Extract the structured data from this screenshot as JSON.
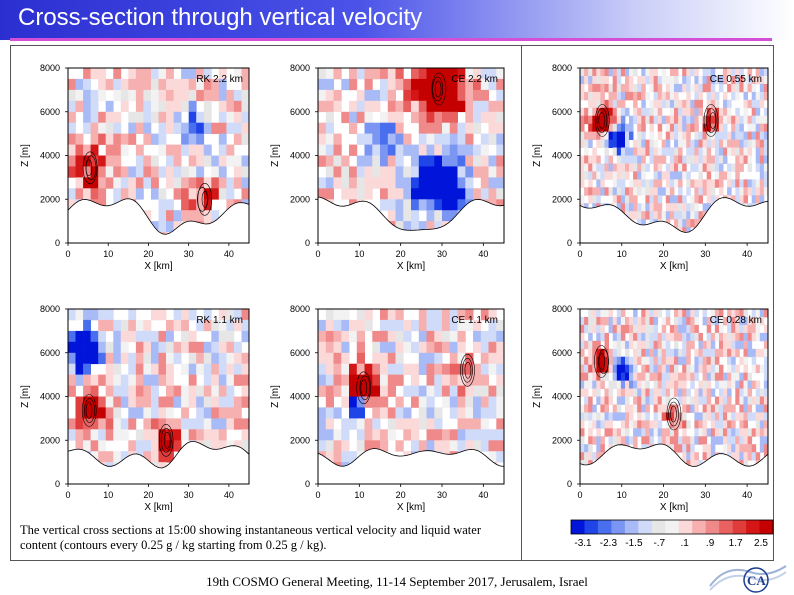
{
  "title": "Cross-section through vertical velocity",
  "caption": "The vertical cross sections at 15:00 showing instantaneous vertical velocity and liquid water content (contours every 0.25 g / kg starting from 0.25 g / kg).",
  "footer": "19th COSMO General Meeting, 11-14 September 2017, Jerusalem, Israel",
  "logo_text": "CA",
  "chart_data": [
    {
      "type": "heatmap",
      "title": "RK 2.2 km",
      "xlabel": "X [km]",
      "ylabel": "Z [m]",
      "xlim": [
        0,
        45
      ],
      "ylim": [
        0,
        8000
      ],
      "xticks": [
        "0",
        "10",
        "20",
        "30",
        "40"
      ],
      "yticks": [
        "0",
        "2000",
        "4000",
        "6000",
        "8000"
      ]
    },
    {
      "type": "heatmap",
      "title": "CE 2.2 km",
      "xlabel": "X [km]",
      "ylabel": "Z [m]",
      "xlim": [
        0,
        45
      ],
      "ylim": [
        0,
        8000
      ],
      "xticks": [
        "0",
        "10",
        "20",
        "30",
        "40"
      ],
      "yticks": [
        "0",
        "2000",
        "4000",
        "6000",
        "8000"
      ]
    },
    {
      "type": "heatmap",
      "title": "CE 0.55 km",
      "xlabel": "X [km]",
      "ylabel": "Z [m]",
      "xlim": [
        0,
        45
      ],
      "ylim": [
        0,
        8000
      ],
      "xticks": [
        "0",
        "10",
        "20",
        "30",
        "40"
      ],
      "yticks": [
        "0",
        "2000",
        "4000",
        "6000",
        "8000"
      ]
    },
    {
      "type": "heatmap",
      "title": "RK 1.1 km",
      "xlabel": "X [km]",
      "ylabel": "Z [m]",
      "xlim": [
        0,
        45
      ],
      "ylim": [
        0,
        8000
      ],
      "xticks": [
        "0",
        "10",
        "20",
        "30",
        "40"
      ],
      "yticks": [
        "0",
        "2000",
        "4000",
        "6000",
        "8000"
      ]
    },
    {
      "type": "heatmap",
      "title": "CE 1.1 km",
      "xlabel": "X [km]",
      "ylabel": "Z [m]",
      "xlim": [
        0,
        45
      ],
      "ylim": [
        0,
        8000
      ],
      "xticks": [
        "0",
        "10",
        "20",
        "30",
        "40"
      ],
      "yticks": [
        "0",
        "2000",
        "4000",
        "6000",
        "8000"
      ]
    },
    {
      "type": "heatmap",
      "title": "CE 0.28 km",
      "xlabel": "X [km]",
      "ylabel": "Z [m]",
      "xlim": [
        0,
        45
      ],
      "ylim": [
        0,
        8000
      ],
      "xticks": [
        "0",
        "10",
        "20",
        "30",
        "40"
      ],
      "yticks": [
        "0",
        "2000",
        "4000",
        "6000",
        "8000"
      ]
    }
  ],
  "colorbar": {
    "colors": [
      "#0015d9",
      "#1f44e8",
      "#4a6fee",
      "#7b96f2",
      "#a9bbf6",
      "#d0daf9",
      "#e6e6e6",
      "#f2f2f2",
      "#fbd9d9",
      "#f6b0b0",
      "#f08a8a",
      "#e86262",
      "#e03c3c",
      "#d41616",
      "#c40000"
    ],
    "labels": [
      "-3.1",
      "-2.3",
      "-1.5",
      "-.7",
      ".1",
      ".9",
      "1.7",
      "2.5"
    ]
  }
}
